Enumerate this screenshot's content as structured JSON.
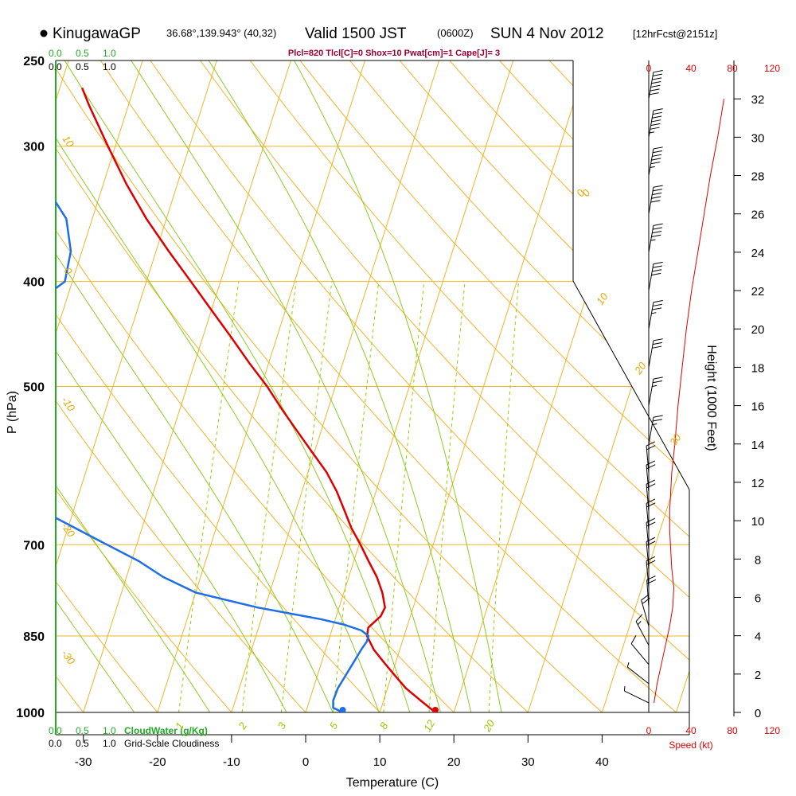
{
  "header": {
    "station": "KinugawaGP",
    "coords": "36.68°,139.943° (40,32)",
    "valid": "Valid 1500 JST",
    "utc": "(0600Z)",
    "date": "SUN 4 Nov 2012",
    "forecast": "[12hrFcst@2151z]",
    "indices": "Plcl=820 Tlcl[C]=0 Shox=10 Pwat[cm]=1 Cape[J]= 3"
  },
  "colors": {
    "temperature": "#dd0000",
    "dewpoint": "#1e6fe6",
    "isotherm": "#f0b429",
    "dry_adiabat": "#f0b429",
    "moist_adiabat": "#8ccc22",
    "mixing_ratio": "#99cc00",
    "cloud_water": "#22aa22",
    "wind_speed": "#dd0000"
  },
  "top_scales": {
    "cloud_water": [
      "0.0",
      "0.5",
      "1.0"
    ],
    "cloudiness": [
      "0.0",
      "0.5",
      "1.0"
    ],
    "wind_speed": [
      "0",
      "40",
      "80",
      "120"
    ]
  },
  "bottom_scales": {
    "cloud_water": [
      "0.0",
      "0.5",
      "1.0"
    ],
    "cloud_water_label": "CloudWater (g/Kg)",
    "cloudiness": [
      "0.0",
      "0.5",
      "1.0"
    ],
    "cloudiness_label": "Grid-Scale Cloudiness",
    "wind_speed": [
      "0",
      "40",
      "80",
      "120"
    ],
    "wind_speed_label": "Speed (kt)"
  },
  "chart_data": {
    "type": "line",
    "title": "",
    "xlabel": "Temperature (C)",
    "ylabel": "P (hPa)",
    "y2label": "Height (1000 Feet)",
    "xlim": [
      -35,
      46
    ],
    "ylim": [
      1000,
      250
    ],
    "x_ticks": [
      -30,
      -20,
      -10,
      0,
      10,
      20,
      30,
      40
    ],
    "y_ticks": [
      250,
      300,
      400,
      500,
      700,
      850,
      1000
    ],
    "height_ticks": [
      0,
      2,
      4,
      6,
      8,
      10,
      12,
      14,
      16,
      18,
      20,
      22,
      24,
      26,
      28,
      30,
      32
    ],
    "isotherm_labels": [
      "-10",
      "0",
      "10",
      "20",
      "30"
    ],
    "dry_adiabat_labels": [
      "10",
      "0",
      "-10",
      "-20",
      "-30"
    ],
    "mixing_ratio_labels": [
      "1",
      "2",
      "3",
      "5",
      "8",
      "12",
      "20"
    ],
    "series": [
      {
        "name": "Temperature",
        "pressure": [
          1000,
          975,
          950,
          925,
          900,
          875,
          850,
          835,
          825,
          815,
          800,
          775,
          750,
          725,
          700,
          675,
          650,
          625,
          600,
          575,
          550,
          525,
          500,
          475,
          450,
          425,
          400,
          375,
          350,
          325,
          300,
          275,
          265
        ],
        "values": [
          17.5,
          15.0,
          12.5,
          10.5,
          8.5,
          6.5,
          5.0,
          4.8,
          5.4,
          6.0,
          6.2,
          5.2,
          3.8,
          2.0,
          0.2,
          -1.8,
          -3.5,
          -5.3,
          -7.5,
          -10.3,
          -13.2,
          -16.2,
          -19.2,
          -22.7,
          -26.2,
          -30.0,
          -34.0,
          -38.3,
          -42.7,
          -46.9,
          -51.0,
          -55.3,
          -57.0
        ]
      },
      {
        "name": "Dewpoint",
        "pressure": [
          1000,
          990,
          975,
          950,
          925,
          900,
          875,
          860,
          850,
          840,
          830,
          820,
          810,
          800,
          775,
          750,
          725,
          700,
          650,
          600,
          575,
          550,
          525,
          500,
          475,
          450,
          425,
          400,
          375,
          350,
          325,
          300,
          275,
          265
        ],
        "values": [
          5.0,
          3.5,
          3.2,
          3.3,
          3.8,
          4.3,
          4.8,
          5.2,
          5.2,
          4.0,
          1.5,
          -2.0,
          -6.5,
          -11.0,
          -20.0,
          -25.0,
          -29.0,
          -34.0,
          -44.5,
          -55.0,
          -63.0,
          -65.0,
          -64.0,
          -62.5,
          -62.0,
          -60.0,
          -55.0,
          -51.0,
          -51.5,
          -53.5,
          -58.0,
          -62.5,
          -67.0,
          -69.0
        ]
      }
    ],
    "wind_profile": {
      "height_kft": [
        0.5,
        1.5,
        2.5,
        3.5,
        4.5,
        5.5,
        6.5,
        7.5,
        8.5,
        9.5,
        10.5,
        11.5,
        12.5,
        14,
        16,
        18,
        20,
        22,
        24,
        26,
        28,
        30,
        32
      ],
      "speed_kt": [
        5,
        8,
        12,
        16,
        20,
        23,
        24,
        22,
        21,
        20,
        20,
        21,
        22,
        25,
        28,
        32,
        36,
        41,
        47,
        53,
        59,
        66,
        72
      ]
    }
  }
}
